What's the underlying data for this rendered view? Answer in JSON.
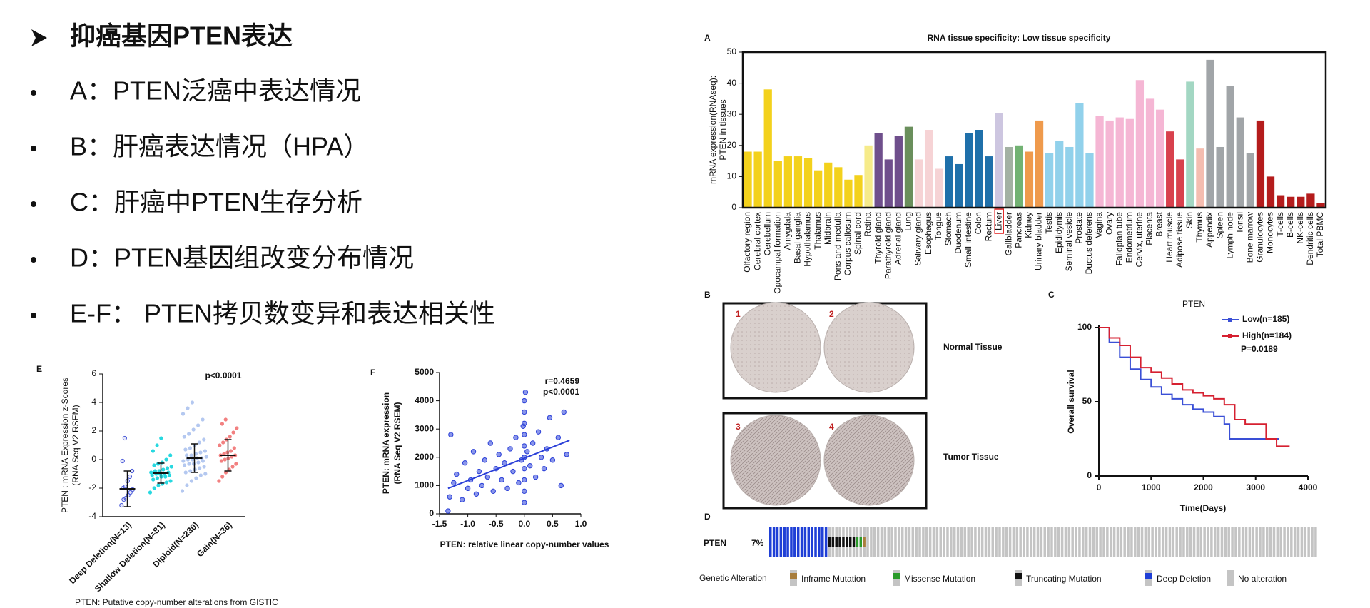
{
  "slide": {
    "heading": "抑癌基因PTEN表达",
    "bullets": [
      "A：PTEN泛癌中表达情况",
      "B：肝癌表达情况（HPA）",
      "C：肝癌中PTEN生存分析",
      "D：PTEN基因组改变分布情况",
      "E-F： PTEN拷贝数变异和表达相关性"
    ]
  },
  "tissue_panel": {
    "label": "B",
    "images": [
      "1",
      "2",
      "3",
      "4"
    ],
    "rows": [
      "Normal Tissue",
      "Tumor Tissue"
    ]
  },
  "chart_data": [
    {
      "type": "bar",
      "label": "A",
      "title": "RNA tissue specificity: Low tissue specificity",
      "y_label": [
        "mRNA expression(RNAseq):",
        "PTEN in tissues"
      ],
      "categories": [
        "Olfactory region",
        "Cerebral cortex",
        "Cerebellum",
        "Opocampal formation",
        "Amygdala",
        "Basal ganglia",
        "Hypothalamus",
        "Thalamus",
        "Midbrain",
        "Pons and medulla",
        "Corpus callosum",
        "Spinal cord",
        "Retina",
        "Thyroid gland",
        "Parathyroid gland",
        "Adrenal gland",
        "Lung",
        "Salivary gland",
        "Esophagus",
        "Tongue",
        "Stomach",
        "Duodenum",
        "Small intestine",
        "Colon",
        "Rectum",
        "Liver",
        "Gallbladder",
        "Pancreas",
        "Kidney",
        "Urinary bladder",
        "Testis",
        "Epididymis",
        "Seminal vesicle",
        "Prostate",
        "Ductus deferens",
        "Vagina",
        "Ovary",
        "Fallopian tube",
        "Endometrium",
        "Cervix, uterine",
        "Placenta",
        "Breast",
        "Heart muscle",
        "Adipose tissue",
        "Skin",
        "Thymus",
        "Appendix",
        "Spleen",
        "Lymph node",
        "Tonsil",
        "Bone marrow",
        "Granulocytes",
        "Monocytes",
        "T-cells",
        "B-cells",
        "NK-cells",
        "Dendritic cells",
        "Total PBMC"
      ],
      "values": [
        18,
        18,
        38,
        15,
        16.5,
        16.5,
        16,
        12,
        14.5,
        13,
        9,
        10.5,
        20,
        24,
        15.5,
        23,
        26,
        15.5,
        25,
        12.5,
        16.5,
        14,
        24,
        25,
        16.5,
        30.5,
        19.5,
        20,
        18,
        28,
        17.5,
        21.5,
        19.5,
        33.5,
        17.5,
        29.5,
        28,
        29,
        28.5,
        41,
        35,
        31.5,
        24.5,
        15.5,
        40.5,
        19,
        47.5,
        19.5,
        39,
        29,
        17.5,
        28,
        10,
        4,
        3.5,
        3.5,
        4.5,
        1.5
      ],
      "colors": [
        "#f3d11c",
        "#f3d11c",
        "#f3d11c",
        "#f3d11c",
        "#f3d11c",
        "#f3d11c",
        "#f3d11c",
        "#f3d11c",
        "#f3d11c",
        "#f3d11c",
        "#f3d11c",
        "#f3d11c",
        "#f6eb8a",
        "#6f4f8c",
        "#6f4f8c",
        "#6f4f8c",
        "#6a8f5c",
        "#f6d3d5",
        "#f6d3d5",
        "#f6d3d5",
        "#1f70aa",
        "#1f70aa",
        "#1f70aa",
        "#1f70aa",
        "#1f70aa",
        "#cdc6e0",
        "#a3b1a3",
        "#72b273",
        "#ef9a4c",
        "#ef9a4c",
        "#91d1eb",
        "#91d1eb",
        "#91d1eb",
        "#91d1eb",
        "#91d1eb",
        "#f5b6d4",
        "#f5b6d4",
        "#f5b6d4",
        "#f5b6d4",
        "#f5b6d4",
        "#f5b6d4",
        "#f5b6d4",
        "#d8414d",
        "#d8414d",
        "#a3d7c3",
        "#f5bdb0",
        "#a1a5a8",
        "#a1a5a8",
        "#a1a5a8",
        "#a1a5a8",
        "#a1a5a8",
        "#b41c1c",
        "#b41c1c",
        "#b41c1c",
        "#b41c1c",
        "#b41c1c",
        "#b41c1c",
        "#b41c1c"
      ],
      "highlight_index": 25,
      "ylim": [
        0,
        50
      ],
      "yticks": [
        0,
        10,
        20,
        30,
        40,
        50
      ]
    },
    {
      "type": "line",
      "label": "C",
      "title": "PTEN",
      "x_label": "Time(Days)",
      "y_label": "Overall survival",
      "annotation": "P=0.0189",
      "series": [
        {
          "name": "Low(n=185)",
          "color": "#3a4fd6",
          "x": [
            0,
            200,
            400,
            600,
            800,
            1000,
            1200,
            1400,
            1600,
            1800,
            2000,
            2200,
            2400,
            2500,
            3000,
            3450
          ],
          "values": [
            100,
            90,
            80,
            72,
            65,
            60,
            55,
            52,
            48,
            45,
            43,
            40,
            35,
            25,
            25,
            25
          ]
        },
        {
          "name": "High(n=184)",
          "color": "#d62030",
          "x": [
            0,
            200,
            400,
            600,
            800,
            1000,
            1200,
            1400,
            1600,
            1800,
            2000,
            2200,
            2400,
            2600,
            2800,
            3200,
            3400,
            3650
          ],
          "values": [
            100,
            93,
            88,
            80,
            73,
            70,
            66,
            62,
            58,
            56,
            54,
            52,
            48,
            38,
            35,
            25,
            20,
            20
          ]
        }
      ],
      "xlim": [
        0,
        4000
      ],
      "xticks": [
        0,
        1000,
        2000,
        3000,
        4000
      ],
      "ylim": [
        0,
        100
      ],
      "yticks": [
        0,
        50,
        100
      ]
    },
    {
      "type": "oncoprint",
      "label": "D",
      "gene": "PTEN",
      "percent": "7%",
      "legend_title": "Genetic Alteration",
      "alterations": [
        {
          "name": "Inframe Mutation",
          "color": "#a87d3c",
          "count": 1
        },
        {
          "name": "Missense Mutation",
          "color": "#2a9a2a",
          "count": 2
        },
        {
          "name": "Truncating Mutation",
          "color": "#111111",
          "count": 8
        },
        {
          "name": "Deep Deletion",
          "color": "#1f3fd6",
          "count": 17
        },
        {
          "name": "No alteration",
          "color": "#c4c4c4",
          "count": 130
        }
      ]
    },
    {
      "type": "strip",
      "label": "E",
      "annotation": "p<0.0001",
      "y_label": [
        "PTEN : mRNA Expression z-Scores",
        "(RNA Seq V2 RSEM)"
      ],
      "x_label": "PTEN: Putative copy-number alterations from GISTIC",
      "groups": [
        {
          "name": "Deep Deletion(N=13)",
          "color": "#4a5ad8",
          "mean": -2.05,
          "sd": 1.25,
          "values": [
            -3.2,
            -2.8,
            -2.7,
            -2.5,
            -2.3,
            -2.1,
            -2.0,
            -1.9,
            -1.5,
            -1.2,
            -0.8,
            -0.1,
            1.5
          ]
        },
        {
          "name": "Shallow Deletion(N=81)",
          "color": "#27d8e0",
          "mean": -0.95,
          "sd": 0.7,
          "values": [
            -2.3,
            -2.0,
            -1.8,
            -1.7,
            -1.6,
            -1.5,
            -1.4,
            -1.3,
            -1.2,
            -1.2,
            -1.1,
            -1.1,
            -1.0,
            -1.0,
            -1.0,
            -0.9,
            -0.9,
            -0.8,
            -0.8,
            -0.7,
            -0.6,
            -0.5,
            -0.4,
            -0.3,
            -0.2,
            0,
            0.3,
            0.6,
            1.0,
            1.5
          ]
        },
        {
          "name": "Diploid(N=230)",
          "color": "#b4c8f0",
          "mean": 0.1,
          "sd": 1.0,
          "values": [
            -2.2,
            -1.8,
            -1.5,
            -1.3,
            -1.1,
            -1.0,
            -0.9,
            -0.8,
            -0.7,
            -0.6,
            -0.5,
            -0.4,
            -0.3,
            -0.3,
            -0.2,
            -0.1,
            -0.1,
            0,
            0,
            0.1,
            0.1,
            0.2,
            0.3,
            0.3,
            0.4,
            0.5,
            0.6,
            0.7,
            0.8,
            1.0,
            1.2,
            1.4,
            1.6,
            1.8,
            2.1,
            2.4,
            2.8,
            3.2,
            3.6,
            4.0
          ]
        },
        {
          "name": "Gain(N=36)",
          "color": "#f28080",
          "mean": 0.3,
          "sd": 1.1,
          "values": [
            -1.5,
            -1.2,
            -0.9,
            -0.7,
            -0.5,
            -0.3,
            -0.1,
            0,
            0.1,
            0.2,
            0.3,
            0.3,
            0.4,
            0.5,
            0.6,
            0.8,
            1.0,
            1.2,
            1.4,
            1.6,
            1.9,
            2.2,
            2.5,
            2.8
          ]
        }
      ],
      "ylim": [
        -4,
        6
      ],
      "yticks": [
        -4,
        -2,
        0,
        2,
        4,
        6
      ]
    },
    {
      "type": "scatter",
      "label": "F",
      "annotations": [
        "r=0.4659",
        "p<0.0001"
      ],
      "y_label": [
        "PTEN: mRNA expression",
        "(RNA Seq V2 RSEM)"
      ],
      "x_label": "PTEN: relative linear copy-number values",
      "color": "#2a3fd8",
      "x": [
        -1.35,
        -1.32,
        -1.3,
        -1.25,
        -1.2,
        -1.1,
        -1.05,
        -1.0,
        -0.95,
        -0.9,
        -0.85,
        -0.8,
        -0.75,
        -0.7,
        -0.65,
        -0.6,
        -0.55,
        -0.5,
        -0.45,
        -0.4,
        -0.35,
        -0.3,
        -0.25,
        -0.2,
        -0.15,
        -0.1,
        -0.05,
        -0.02,
        0,
        0,
        0,
        0,
        0,
        0,
        0,
        0,
        0,
        0,
        0.02,
        0.05,
        0.1,
        0.15,
        0.2,
        0.25,
        0.3,
        0.35,
        0.4,
        0.45,
        0.5,
        0.6,
        0.65,
        0.7,
        0.75
      ],
      "y": [
        100,
        600,
        2800,
        1100,
        1400,
        500,
        1800,
        900,
        1200,
        2200,
        700,
        1500,
        1000,
        1900,
        1300,
        2500,
        800,
        1600,
        2100,
        1200,
        1800,
        900,
        2300,
        1500,
        2700,
        1100,
        1900,
        3100,
        400,
        800,
        1200,
        1600,
        2000,
        2400,
        2800,
        3200,
        3600,
        4000,
        4300,
        2200,
        1700,
        2500,
        1300,
        2900,
        2000,
        1600,
        2300,
        3400,
        1900,
        2700,
        1000,
        3600,
        2100
      ],
      "trend": {
        "x": [
          -1.35,
          0.8
        ],
        "y": [
          900,
          2600
        ]
      },
      "xlim": [
        -1.5,
        1.0
      ],
      "xticks": [
        {
          "value": -1.5,
          "label": "-1.5"
        },
        {
          "value": -1.0,
          "label": "-1.0"
        },
        {
          "value": -0.5,
          "label": "-0.5"
        },
        {
          "value": 0,
          "label": "0.0"
        },
        {
          "value": 0.5,
          "label": "0.5"
        },
        {
          "value": 1.0,
          "label": "1.0"
        }
      ],
      "ylim": [
        0,
        5000
      ],
      "yticks": [
        0,
        1000,
        2000,
        3000,
        4000,
        5000
      ]
    }
  ]
}
